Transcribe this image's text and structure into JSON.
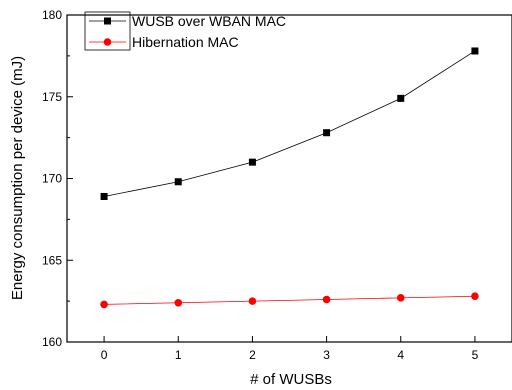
{
  "chart_data": {
    "type": "line",
    "title": "",
    "xlabel": "# of WUSBs",
    "ylabel": "Energy consumption per device (mJ)",
    "x": [
      0,
      1,
      2,
      3,
      4,
      5
    ],
    "x_tick_labels": [
      "0",
      "1",
      "2",
      "3",
      "4",
      "5"
    ],
    "xlim": [
      -0.5,
      5.5
    ],
    "ylim": [
      160,
      180
    ],
    "y_ticks": [
      160,
      165,
      170,
      175,
      180
    ],
    "y_tick_labels": [
      "160",
      "165",
      "170",
      "175",
      "180"
    ],
    "grid": false,
    "legend_position": "top-left",
    "series": [
      {
        "name": "WUSB over WBAN MAC",
        "values": [
          168.9,
          169.8,
          171.0,
          172.8,
          174.9,
          177.8
        ],
        "marker": "square",
        "marker_color": "#000000",
        "line_color": "#000000"
      },
      {
        "name": "Hibernation MAC",
        "values": [
          162.3,
          162.4,
          162.5,
          162.6,
          162.7,
          162.8
        ],
        "marker": "circle",
        "marker_color": "#ff0000",
        "line_color": "#ff0000"
      }
    ]
  }
}
